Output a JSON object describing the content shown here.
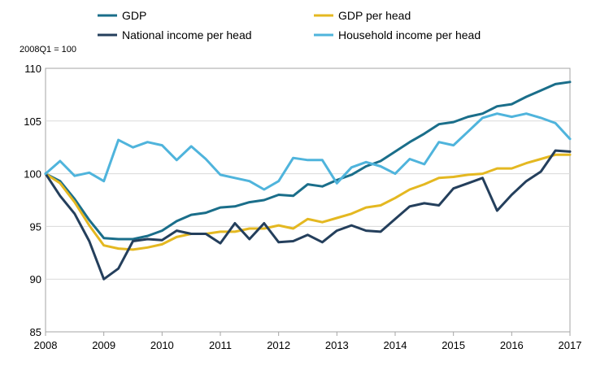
{
  "chart_data": {
    "type": "line",
    "unit_label": "2008Q1 = 100",
    "ylim": [
      85,
      110
    ],
    "y_ticks": [
      85,
      90,
      95,
      100,
      105,
      110
    ],
    "x_ticks": [
      "2008",
      "2009",
      "2010",
      "2011",
      "2012",
      "2013",
      "2014",
      "2015",
      "2016",
      "2017"
    ],
    "xlim": [
      "2008Q1",
      "2017Q1"
    ],
    "grid": "horizontal",
    "legend_position": "top",
    "x": [
      "2008Q1",
      "2008Q2",
      "2008Q3",
      "2008Q4",
      "2009Q1",
      "2009Q2",
      "2009Q3",
      "2009Q4",
      "2010Q1",
      "2010Q2",
      "2010Q3",
      "2010Q4",
      "2011Q1",
      "2011Q2",
      "2011Q3",
      "2011Q4",
      "2012Q1",
      "2012Q2",
      "2012Q3",
      "2012Q4",
      "2013Q1",
      "2013Q2",
      "2013Q3",
      "2013Q4",
      "2014Q1",
      "2014Q2",
      "2014Q3",
      "2014Q4",
      "2015Q1",
      "2015Q2",
      "2015Q3",
      "2015Q4",
      "2016Q1",
      "2016Q2",
      "2016Q3",
      "2016Q4",
      "2017Q1"
    ],
    "series": [
      {
        "name": "GDP",
        "color": "#1a6e8a",
        "values": [
          100,
          99.3,
          97.6,
          95.6,
          93.9,
          93.8,
          93.8,
          94.1,
          94.6,
          95.5,
          96.1,
          96.3,
          96.8,
          96.9,
          97.3,
          97.5,
          98.0,
          97.9,
          99.0,
          98.8,
          99.4,
          99.9,
          100.7,
          101.2,
          102.1,
          103.0,
          103.8,
          104.7,
          104.9,
          105.4,
          105.7,
          106.4,
          106.6,
          107.3,
          107.9,
          108.5,
          108.7
        ]
      },
      {
        "name": "GDP per head",
        "color": "#e4b821",
        "values": [
          100,
          99.1,
          97.3,
          95.1,
          93.2,
          92.9,
          92.8,
          93.0,
          93.3,
          94.0,
          94.3,
          94.3,
          94.5,
          94.5,
          94.8,
          94.8,
          95.1,
          94.8,
          95.7,
          95.4,
          95.8,
          96.2,
          96.8,
          97.0,
          97.7,
          98.5,
          99.0,
          99.6,
          99.7,
          99.9,
          100.0,
          100.5,
          100.5,
          101.0,
          101.4,
          101.8,
          101.8
        ]
      },
      {
        "name": "National income per head",
        "color": "#243f5c",
        "values": [
          100,
          97.9,
          96.2,
          93.6,
          90.0,
          91.0,
          93.6,
          93.8,
          93.7,
          94.6,
          94.3,
          94.3,
          93.4,
          95.3,
          93.8,
          95.3,
          93.5,
          93.6,
          94.2,
          93.5,
          94.6,
          95.1,
          94.6,
          94.5,
          95.7,
          96.9,
          97.2,
          97.0,
          98.6,
          99.1,
          99.6,
          96.5,
          98.0,
          99.3,
          100.2,
          102.2,
          102.1
        ]
      },
      {
        "name": "Household income per head",
        "color": "#4fb4dc",
        "values": [
          100,
          101.2,
          99.8,
          100.1,
          99.3,
          103.2,
          102.5,
          103.0,
          102.7,
          101.3,
          102.6,
          101.4,
          99.9,
          99.6,
          99.3,
          98.5,
          99.3,
          101.5,
          101.3,
          101.3,
          99.1,
          100.6,
          101.1,
          100.7,
          100.0,
          101.4,
          100.9,
          103.0,
          102.7,
          104.0,
          105.3,
          105.7,
          105.4,
          105.7,
          105.3,
          104.8,
          103.3
        ]
      }
    ]
  }
}
